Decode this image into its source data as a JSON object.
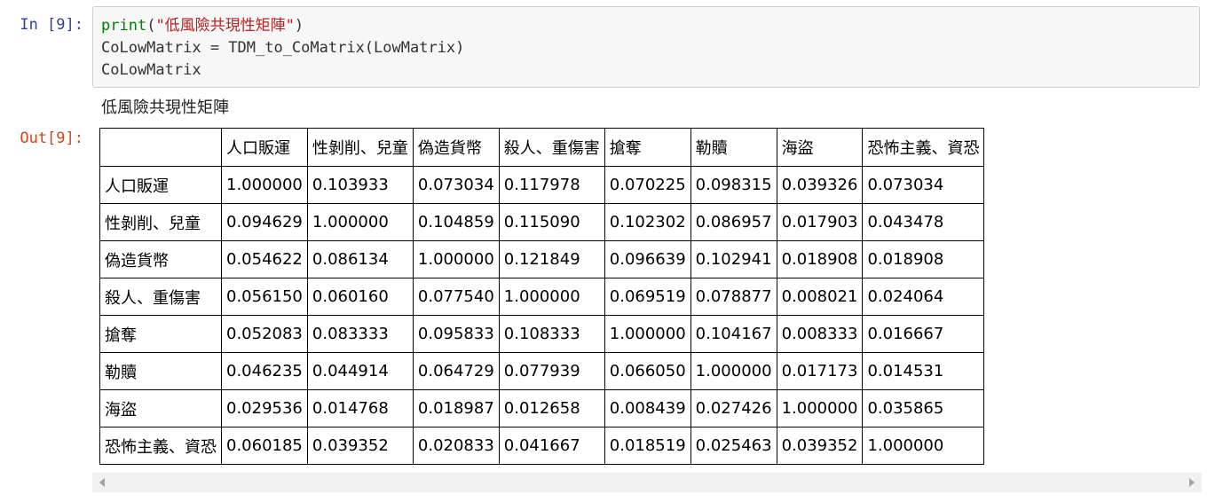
{
  "cell": {
    "in_prompt": "In [9]:",
    "out_prompt": "Out[9]:",
    "code": {
      "line1_func": "print",
      "line1_open": "(",
      "line1_string": "\"低風險共現性矩陣\"",
      "line1_close": ")",
      "line2": "CoLowMatrix = TDM_to_CoMatrix(LowMatrix)",
      "line3": "CoLowMatrix"
    },
    "stdout": "低風險共現性矩陣"
  },
  "table": {
    "corner": "",
    "columns": [
      "人口販運",
      "性剝削、兒童",
      "偽造貨幣",
      "殺人、重傷害",
      "搶奪",
      "勒贖",
      "海盜",
      "恐怖主義、資恐"
    ],
    "rows": [
      {
        "label": "人口販運",
        "values": [
          "1.000000",
          "0.103933",
          "0.073034",
          "0.117978",
          "0.070225",
          "0.098315",
          "0.039326",
          "0.073034"
        ]
      },
      {
        "label": "性剝削、兒童",
        "values": [
          "0.094629",
          "1.000000",
          "0.104859",
          "0.115090",
          "0.102302",
          "0.086957",
          "0.017903",
          "0.043478"
        ]
      },
      {
        "label": "偽造貨幣",
        "values": [
          "0.054622",
          "0.086134",
          "1.000000",
          "0.121849",
          "0.096639",
          "0.102941",
          "0.018908",
          "0.018908"
        ]
      },
      {
        "label": "殺人、重傷害",
        "values": [
          "0.056150",
          "0.060160",
          "0.077540",
          "1.000000",
          "0.069519",
          "0.078877",
          "0.008021",
          "0.024064"
        ]
      },
      {
        "label": "搶奪",
        "values": [
          "0.052083",
          "0.083333",
          "0.095833",
          "0.108333",
          "1.000000",
          "0.104167",
          "0.008333",
          "0.016667"
        ]
      },
      {
        "label": "勒贖",
        "values": [
          "0.046235",
          "0.044914",
          "0.064729",
          "0.077939",
          "0.066050",
          "1.000000",
          "0.017173",
          "0.014531"
        ]
      },
      {
        "label": "海盜",
        "values": [
          "0.029536",
          "0.014768",
          "0.018987",
          "0.012658",
          "0.008439",
          "0.027426",
          "1.000000",
          "0.035865"
        ]
      },
      {
        "label": "恐怖主義、資恐",
        "values": [
          "0.060185",
          "0.039352",
          "0.020833",
          "0.041667",
          "0.018519",
          "0.025463",
          "0.039352",
          "1.000000"
        ]
      }
    ]
  },
  "colors": {
    "in_prompt": "#303f9f",
    "out_prompt": "#d84315",
    "builtin": "#008000",
    "string": "#ba2121",
    "input_background": "#f7f7f7",
    "scrollbar_track": "#f1f1f1"
  },
  "scrollbar": {
    "left_icon": "chevron-left-icon",
    "right_icon": "chevron-right-icon"
  }
}
